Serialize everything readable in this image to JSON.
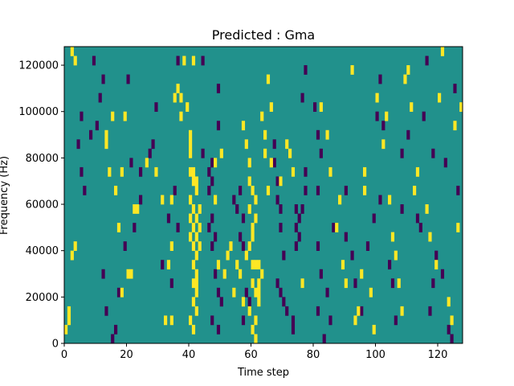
{
  "chart_data": {
    "type": "heatmap",
    "title": "Predicted : Gma",
    "xlabel": "Time step",
    "ylabel": "Frequency (Hz)",
    "xlim": [
      0,
      128
    ],
    "ylim": [
      0,
      128000
    ],
    "x_ticks": [
      0,
      20,
      40,
      60,
      80,
      100,
      120
    ],
    "y_ticks": [
      0,
      20000,
      40000,
      60000,
      80000,
      100000,
      120000
    ],
    "x_tick_labels": [
      "0",
      "20",
      "40",
      "60",
      "80",
      "100",
      "120"
    ],
    "y_tick_labels": [
      "0",
      "20000",
      "40000",
      "60000",
      "80000",
      "100000",
      "120000"
    ],
    "grid": false,
    "colormap": "viridis",
    "colors": {
      "background_level": "#21918c",
      "high_level": "#fde725",
      "low_level": "#440154"
    },
    "cell_width": 1,
    "cell_height": 4000,
    "levels": {
      "low": 0,
      "mid": 1,
      "high": 2
    },
    "high_cells": [
      [
        2,
        124000
      ],
      [
        3,
        120000
      ],
      [
        36,
        108000
      ],
      [
        37,
        96000
      ],
      [
        40,
        88000
      ],
      [
        40,
        84000
      ],
      [
        40,
        72000
      ],
      [
        41,
        72000
      ],
      [
        41,
        68000
      ],
      [
        42,
        68000
      ],
      [
        42,
        64000
      ],
      [
        40,
        60000
      ],
      [
        41,
        56000
      ],
      [
        40,
        52000
      ],
      [
        41,
        48000
      ],
      [
        40,
        44000
      ],
      [
        41,
        40000
      ],
      [
        42,
        36000
      ],
      [
        41,
        32000
      ],
      [
        42,
        28000
      ],
      [
        41,
        24000
      ],
      [
        42,
        20000
      ],
      [
        41,
        16000
      ],
      [
        40,
        8000
      ],
      [
        41,
        4000
      ],
      [
        42,
        52000
      ],
      [
        42,
        44000
      ],
      [
        43,
        48000
      ],
      [
        43,
        56000
      ],
      [
        43,
        40000
      ],
      [
        42,
        12000
      ],
      [
        42,
        24000
      ],
      [
        57,
        92000
      ],
      [
        58,
        84000
      ],
      [
        59,
        76000
      ],
      [
        59,
        68000
      ],
      [
        60,
        64000
      ],
      [
        59,
        56000
      ],
      [
        60,
        48000
      ],
      [
        59,
        40000
      ],
      [
        60,
        32000
      ],
      [
        61,
        32000
      ],
      [
        62,
        32000
      ],
      [
        60,
        24000
      ],
      [
        61,
        20000
      ],
      [
        62,
        16000
      ],
      [
        59,
        12000
      ],
      [
        61,
        8000
      ],
      [
        60,
        4000
      ],
      [
        61,
        0
      ],
      [
        62,
        24000
      ],
      [
        62,
        20000
      ],
      [
        63,
        28000
      ],
      [
        60,
        44000
      ],
      [
        61,
        52000
      ],
      [
        61,
        60000
      ],
      [
        65,
        64000
      ],
      [
        64,
        80000
      ],
      [
        64,
        88000
      ],
      [
        66,
        76000
      ],
      [
        2,
        36000
      ],
      [
        3,
        40000
      ],
      [
        1,
        12000
      ],
      [
        1,
        8000
      ],
      [
        0,
        4000
      ],
      [
        20,
        28000
      ],
      [
        21,
        28000
      ],
      [
        17,
        48000
      ],
      [
        18,
        20000
      ],
      [
        14,
        72000
      ],
      [
        13,
        84000
      ],
      [
        13,
        88000
      ],
      [
        15,
        96000
      ],
      [
        19,
        96000
      ],
      [
        18,
        72000
      ],
      [
        16,
        64000
      ],
      [
        22,
        56000
      ],
      [
        23,
        56000
      ],
      [
        26,
        76000
      ],
      [
        29,
        72000
      ],
      [
        31,
        60000
      ],
      [
        34,
        60000
      ],
      [
        34,
        40000
      ],
      [
        33,
        32000
      ],
      [
        32,
        8000
      ],
      [
        34,
        8000
      ],
      [
        35,
        104000
      ],
      [
        37,
        104000
      ],
      [
        39,
        100000
      ],
      [
        38,
        120000
      ],
      [
        41,
        120000
      ],
      [
        40,
        80000
      ],
      [
        48,
        60000
      ],
      [
        48,
        76000
      ],
      [
        50,
        80000
      ],
      [
        49,
        32000
      ],
      [
        51,
        28000
      ],
      [
        52,
        36000
      ],
      [
        53,
        40000
      ],
      [
        55,
        32000
      ],
      [
        56,
        28000
      ],
      [
        54,
        20000
      ],
      [
        57,
        16000
      ],
      [
        58,
        36000
      ],
      [
        63,
        96000
      ],
      [
        65,
        112000
      ],
      [
        66,
        100000
      ],
      [
        69,
        68000
      ],
      [
        71,
        84000
      ],
      [
        73,
        72000
      ],
      [
        72,
        80000
      ],
      [
        76,
        24000
      ],
      [
        82,
        100000
      ],
      [
        84,
        88000
      ],
      [
        85,
        72000
      ],
      [
        87,
        48000
      ],
      [
        88,
        60000
      ],
      [
        89,
        32000
      ],
      [
        90,
        24000
      ],
      [
        92,
        116000
      ],
      [
        95,
        28000
      ],
      [
        96,
        64000
      ],
      [
        98,
        20000
      ],
      [
        100,
        104000
      ],
      [
        102,
        84000
      ],
      [
        104,
        60000
      ],
      [
        103,
        96000
      ],
      [
        105,
        44000
      ],
      [
        106,
        36000
      ],
      [
        107,
        24000
      ],
      [
        108,
        12000
      ],
      [
        109,
        112000
      ],
      [
        110,
        116000
      ],
      [
        111,
        100000
      ],
      [
        112,
        64000
      ],
      [
        113,
        72000
      ],
      [
        116,
        56000
      ],
      [
        117,
        44000
      ],
      [
        119,
        32000
      ],
      [
        120,
        104000
      ],
      [
        121,
        124000
      ],
      [
        123,
        16000
      ],
      [
        124,
        8000
      ],
      [
        125,
        92000
      ],
      [
        126,
        48000
      ],
      [
        127,
        100000
      ],
      [
        99,
        4000
      ],
      [
        96,
        72000
      ],
      [
        93,
        8000
      ],
      [
        94,
        12000
      ]
    ],
    "low_cells": [
      [
        36,
        120000
      ],
      [
        44,
        120000
      ],
      [
        49,
        108000
      ],
      [
        49,
        92000
      ],
      [
        44,
        80000
      ],
      [
        46,
        72000
      ],
      [
        47,
        76000
      ],
      [
        47,
        68000
      ],
      [
        46,
        48000
      ],
      [
        47,
        40000
      ],
      [
        48,
        44000
      ],
      [
        47,
        52000
      ],
      [
        48,
        28000
      ],
      [
        49,
        20000
      ],
      [
        50,
        16000
      ],
      [
        47,
        8000
      ],
      [
        49,
        4000
      ],
      [
        54,
        60000
      ],
      [
        55,
        56000
      ],
      [
        56,
        64000
      ],
      [
        57,
        52000
      ],
      [
        56,
        44000
      ],
      [
        57,
        40000
      ],
      [
        58,
        20000
      ],
      [
        59,
        16000
      ],
      [
        57,
        8000
      ],
      [
        67,
        84000
      ],
      [
        67,
        76000
      ],
      [
        68,
        68000
      ],
      [
        68,
        60000
      ],
      [
        69,
        56000
      ],
      [
        69,
        48000
      ],
      [
        70,
        36000
      ],
      [
        68,
        24000
      ],
      [
        69,
        20000
      ],
      [
        70,
        16000
      ],
      [
        71,
        12000
      ],
      [
        73,
        4000
      ],
      [
        73,
        8000
      ],
      [
        74,
        56000
      ],
      [
        74,
        48000
      ],
      [
        75,
        44000
      ],
      [
        74,
        40000
      ],
      [
        75,
        52000
      ],
      [
        76,
        56000
      ],
      [
        77,
        64000
      ],
      [
        77,
        72000
      ],
      [
        76,
        104000
      ],
      [
        77,
        116000
      ],
      [
        80,
        100000
      ],
      [
        81,
        88000
      ],
      [
        82,
        80000
      ],
      [
        81,
        64000
      ],
      [
        81,
        40000
      ],
      [
        82,
        28000
      ],
      [
        81,
        12000
      ],
      [
        83,
        0
      ],
      [
        85,
        8000
      ],
      [
        84,
        20000
      ],
      [
        86,
        48000
      ],
      [
        90,
        64000
      ],
      [
        90,
        44000
      ],
      [
        92,
        36000
      ],
      [
        93,
        24000
      ],
      [
        95,
        12000
      ],
      [
        97,
        40000
      ],
      [
        99,
        52000
      ],
      [
        101,
        60000
      ],
      [
        102,
        92000
      ],
      [
        101,
        112000
      ],
      [
        100,
        96000
      ],
      [
        104,
        32000
      ],
      [
        105,
        24000
      ],
      [
        106,
        8000
      ],
      [
        108,
        56000
      ],
      [
        108,
        80000
      ],
      [
        110,
        88000
      ],
      [
        113,
        52000
      ],
      [
        114,
        48000
      ],
      [
        115,
        96000
      ],
      [
        116,
        120000
      ],
      [
        117,
        12000
      ],
      [
        118,
        24000
      ],
      [
        119,
        36000
      ],
      [
        121,
        28000
      ],
      [
        123,
        4000
      ],
      [
        124,
        0
      ],
      [
        125,
        108000
      ],
      [
        126,
        64000
      ],
      [
        122,
        76000
      ],
      [
        118,
        80000
      ],
      [
        6,
        64000
      ],
      [
        5,
        72000
      ],
      [
        4,
        84000
      ],
      [
        5,
        96000
      ],
      [
        8,
        88000
      ],
      [
        10,
        92000
      ],
      [
        11,
        104000
      ],
      [
        12,
        112000
      ],
      [
        9,
        120000
      ],
      [
        12,
        28000
      ],
      [
        13,
        12000
      ],
      [
        15,
        0
      ],
      [
        16,
        4000
      ],
      [
        17,
        20000
      ],
      [
        19,
        40000
      ],
      [
        20,
        112000
      ],
      [
        21,
        76000
      ],
      [
        22,
        48000
      ],
      [
        24,
        72000
      ],
      [
        27,
        80000
      ],
      [
        28,
        84000
      ],
      [
        29,
        100000
      ],
      [
        31,
        32000
      ],
      [
        33,
        52000
      ],
      [
        34,
        24000
      ],
      [
        35,
        64000
      ],
      [
        36,
        48000
      ],
      [
        46,
        64000
      ],
      [
        24,
        60000
      ]
    ]
  }
}
